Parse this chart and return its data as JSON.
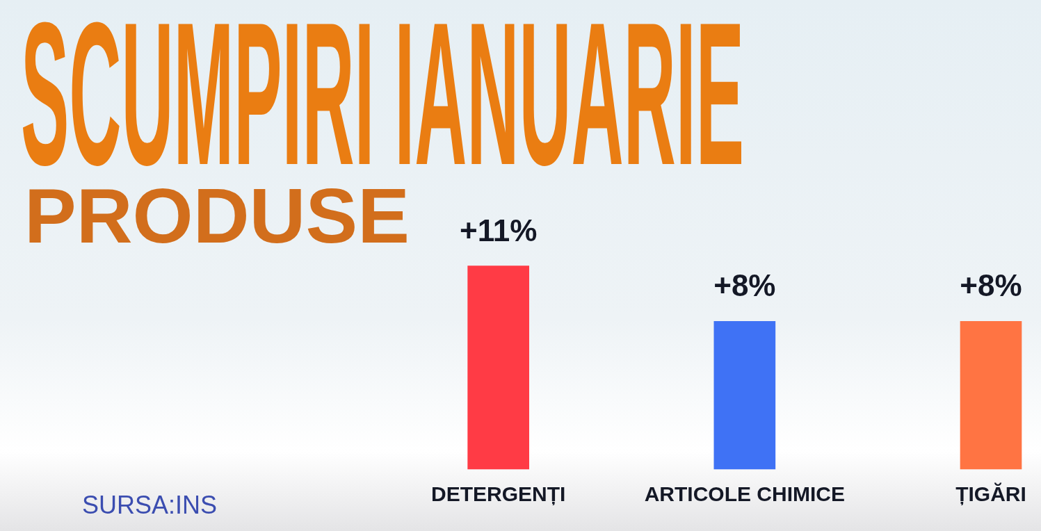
{
  "chart_data": {
    "type": "bar",
    "title": "SCUMPIRI IANUARIE",
    "subtitle": "PRODUSE",
    "categories": [
      "DETERGENȚI",
      "ARTICOLE CHIMICE",
      "ȚIGĂRI"
    ],
    "values": [
      11,
      8,
      8
    ],
    "colors": [
      "#ff3b45",
      "#3f72f5",
      "#ff7443"
    ],
    "value_labels": [
      "+11%",
      "+8%",
      "+8%"
    ],
    "annotations": [
      "SURSA:INS"
    ]
  }
}
